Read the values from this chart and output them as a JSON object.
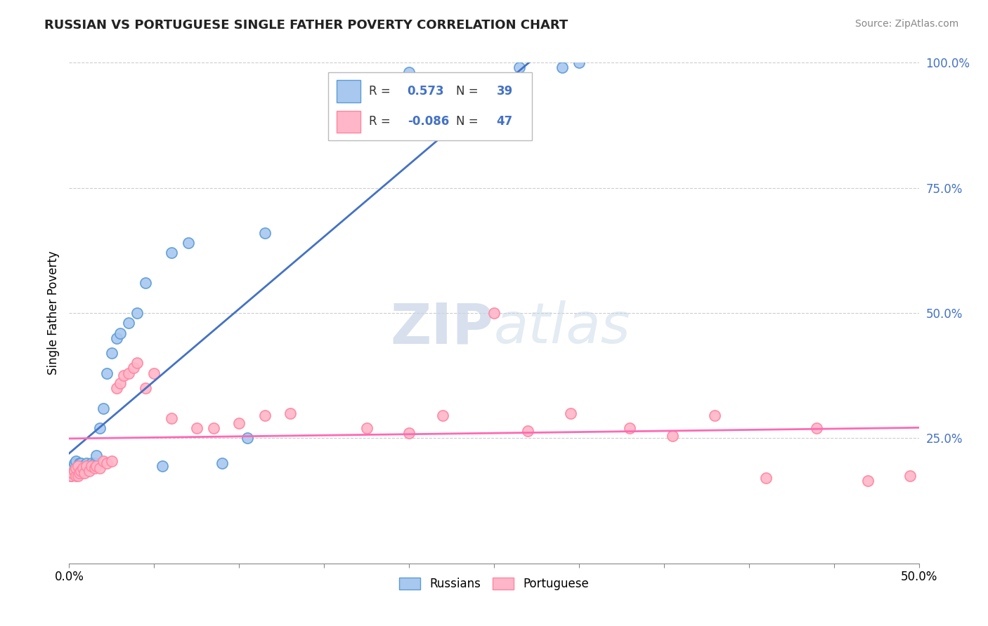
{
  "title": "RUSSIAN VS PORTUGUESE SINGLE FATHER POVERTY CORRELATION CHART",
  "source": "Source: ZipAtlas.com",
  "ylabel": "Single Father Poverty",
  "watermark": "ZIPatlas",
  "russian_R": 0.573,
  "russian_N": 39,
  "portuguese_R": -0.086,
  "portuguese_N": 47,
  "russian_color": "#A8C8F0",
  "portuguese_color": "#FFB6C8",
  "russian_edge_color": "#5B9BD5",
  "portuguese_edge_color": "#FF85A0",
  "russian_line_color": "#4472C4",
  "portuguese_line_color": "#FF69B4",
  "xlim": [
    0.0,
    0.5
  ],
  "ylim": [
    0.0,
    1.0
  ],
  "russian_scatter_x": [
    0.001,
    0.002,
    0.003,
    0.003,
    0.004,
    0.004,
    0.005,
    0.005,
    0.006,
    0.006,
    0.007,
    0.007,
    0.008,
    0.009,
    0.01,
    0.011,
    0.012,
    0.013,
    0.015,
    0.016,
    0.018,
    0.02,
    0.022,
    0.025,
    0.028,
    0.03,
    0.035,
    0.04,
    0.045,
    0.055,
    0.06,
    0.07,
    0.09,
    0.105,
    0.115,
    0.2,
    0.265,
    0.29,
    0.3
  ],
  "russian_scatter_y": [
    0.175,
    0.19,
    0.185,
    0.2,
    0.185,
    0.205,
    0.18,
    0.195,
    0.185,
    0.2,
    0.18,
    0.2,
    0.195,
    0.19,
    0.2,
    0.195,
    0.195,
    0.2,
    0.2,
    0.215,
    0.27,
    0.31,
    0.38,
    0.42,
    0.45,
    0.46,
    0.48,
    0.5,
    0.56,
    0.195,
    0.62,
    0.64,
    0.2,
    0.25,
    0.66,
    0.98,
    0.99,
    0.99,
    1.0
  ],
  "portuguese_scatter_x": [
    0.001,
    0.002,
    0.003,
    0.004,
    0.004,
    0.005,
    0.005,
    0.006,
    0.007,
    0.008,
    0.009,
    0.01,
    0.012,
    0.013,
    0.015,
    0.016,
    0.018,
    0.02,
    0.022,
    0.025,
    0.028,
    0.03,
    0.032,
    0.035,
    0.038,
    0.04,
    0.045,
    0.05,
    0.06,
    0.075,
    0.085,
    0.1,
    0.115,
    0.13,
    0.175,
    0.2,
    0.22,
    0.25,
    0.27,
    0.295,
    0.33,
    0.355,
    0.38,
    0.41,
    0.44,
    0.47,
    0.495
  ],
  "portuguese_scatter_y": [
    0.175,
    0.18,
    0.185,
    0.175,
    0.19,
    0.175,
    0.195,
    0.18,
    0.185,
    0.19,
    0.18,
    0.195,
    0.185,
    0.195,
    0.19,
    0.195,
    0.19,
    0.205,
    0.2,
    0.205,
    0.35,
    0.36,
    0.375,
    0.38,
    0.39,
    0.4,
    0.35,
    0.38,
    0.29,
    0.27,
    0.27,
    0.28,
    0.295,
    0.3,
    0.27,
    0.26,
    0.295,
    0.5,
    0.265,
    0.3,
    0.27,
    0.255,
    0.295,
    0.17,
    0.27,
    0.165,
    0.175
  ]
}
